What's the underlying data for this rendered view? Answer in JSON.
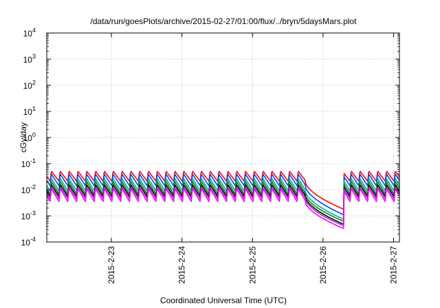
{
  "chart_data": {
    "type": "line",
    "title": "/data/run/goesPlots/archive/2015-02-27/01:00/flux/../bryn/5daysMars.plot",
    "xlabel": "Coordinated Universal Time (UTC)",
    "ylabel": "cGy/day",
    "yscale": "log",
    "ylim": [
      0.0001,
      10000
    ],
    "xlim": [
      "2015-02-22T02:00",
      "2015-02-27T02:00"
    ],
    "grid": true,
    "y_ticks": [
      {
        "base": "10",
        "exp": "-4"
      },
      {
        "base": "10",
        "exp": "-3"
      },
      {
        "base": "10",
        "exp": "-2"
      },
      {
        "base": "10",
        "exp": "-1"
      },
      {
        "base": "10",
        "exp": "0"
      },
      {
        "base": "10",
        "exp": "1"
      },
      {
        "base": "10",
        "exp": "2"
      },
      {
        "base": "10",
        "exp": "3"
      },
      {
        "base": "10",
        "exp": "4"
      }
    ],
    "x_ticks": [
      {
        "label": "2015-2-23",
        "t": "2015-02-23T00:00"
      },
      {
        "label": "2015-2-24",
        "t": "2015-02-24T00:00"
      },
      {
        "label": "2015-2-25",
        "t": "2015-02-25T00:00"
      },
      {
        "label": "2015-2-26",
        "t": "2015-02-26T00:00"
      },
      {
        "label": "2015-2-27",
        "t": "2015-02-27T00:00"
      }
    ],
    "cycle_hours": 3,
    "series": [
      {
        "color": "#ff0000",
        "peak": 0.052,
        "trough": 0.021,
        "event_start": 0.02,
        "event_min": 0.0018
      },
      {
        "color": "#0044ff",
        "peak": 0.04,
        "trough": 0.014,
        "event_start": 0.014,
        "event_min": 0.0011
      },
      {
        "color": "#00aaaa",
        "peak": 0.027,
        "trough": 0.009,
        "event_start": 0.009,
        "event_min": 0.00075
      },
      {
        "color": "#008800",
        "peak": 0.021,
        "trough": 0.0068,
        "event_start": 0.0068,
        "event_min": 0.00062
      },
      {
        "color": "#000000",
        "peak": 0.016,
        "trough": 0.0055,
        "event_start": 0.0055,
        "event_min": 0.00048
      },
      {
        "color": "#9933cc",
        "peak": 0.013,
        "trough": 0.0045,
        "event_start": 0.0045,
        "event_min": 0.00042
      },
      {
        "color": "#ff00ff",
        "peak": 0.011,
        "trough": 0.0035,
        "event_start": 0.0035,
        "event_min": 0.00033
      }
    ],
    "event": {
      "start": "2015-02-25T18:00",
      "end": "2015-02-26T07:00"
    }
  }
}
